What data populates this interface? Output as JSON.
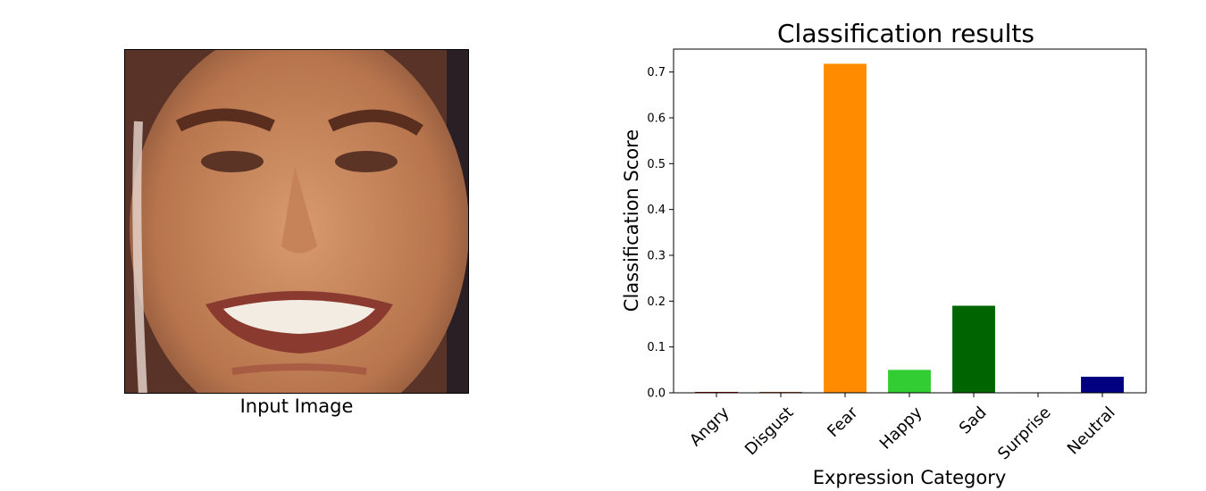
{
  "input_image": {
    "caption": "Input Image"
  },
  "chart_data": {
    "type": "bar",
    "title": "Classification results",
    "xlabel": "Expression Category",
    "ylabel": "Classification Score",
    "categories": [
      "Angry",
      "Disgust",
      "Fear",
      "Happy",
      "Sad",
      "Surprise",
      "Neutral"
    ],
    "values": [
      0.002,
      0.002,
      0.718,
      0.05,
      0.19,
      0.001,
      0.035
    ],
    "colors": [
      "#8b0000",
      "#a0522d",
      "#ff8c00",
      "#32cd32",
      "#006400",
      "#4682b4",
      "#000080"
    ],
    "ylim": [
      0,
      0.75
    ],
    "yticks": [
      0.0,
      0.1,
      0.2,
      0.3,
      0.4,
      0.5,
      0.6,
      0.7
    ],
    "ytick_labels": [
      "0.0",
      "0.1",
      "0.2",
      "0.3",
      "0.4",
      "0.5",
      "0.6",
      "0.7"
    ],
    "grid": false,
    "legend": "none"
  }
}
